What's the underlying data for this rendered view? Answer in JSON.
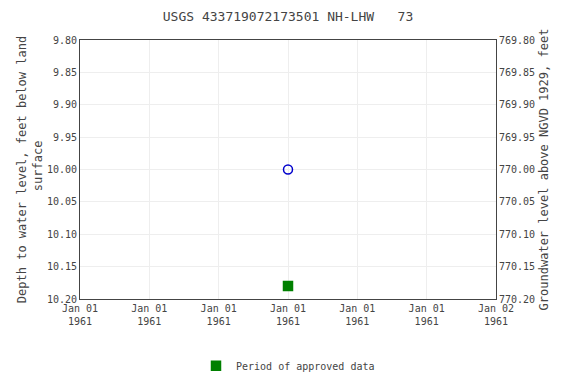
{
  "chart_data": {
    "type": "scatter",
    "title": "USGS 433719072173501 NH-LHW   73",
    "y_label": "Depth to water level, feet below land\n surface",
    "y2_label": "Groundwater level above NGVD 1929, feet",
    "categories": [
      "Jan 01\n1961",
      "Jan 01\n1961",
      "Jan 01\n1961",
      "Jan 01\n1961",
      "Jan 01\n1961",
      "Jan 01\n1961",
      "Jan 02\n1961"
    ],
    "series": [
      {
        "name": "Period of approved data",
        "color": "#008000",
        "marker": "square",
        "values": [
          null,
          null,
          null,
          10.18,
          null,
          null,
          null
        ]
      },
      {
        "color": "#0000cc",
        "marker": "circle-open",
        "values": [
          null,
          null,
          null,
          10.0,
          null,
          null,
          null
        ]
      }
    ],
    "ylim": [
      10.2,
      9.8
    ],
    "yticks": [
      {
        "value": 9.8,
        "label": "9.80"
      },
      9.85,
      {
        "value": 9.9,
        "label": "9.90"
      },
      9.95,
      {
        "value": 10.0,
        "label": "10.00"
      },
      10.05,
      {
        "value": 10.1,
        "label": "10.10"
      },
      10.15,
      {
        "value": 10.2,
        "label": "10.20"
      }
    ],
    "y2lim": [
      770.2,
      769.8
    ],
    "y2ticks": [
      {
        "value": 770.2,
        "label": "770.20"
      },
      770.15,
      {
        "value": 770.1,
        "label": "770.10"
      },
      770.05,
      {
        "value": 770.0,
        "label": "770.00"
      },
      769.95,
      {
        "value": 769.9,
        "label": "769.90"
      },
      769.85,
      {
        "value": 769.8,
        "label": "769.80"
      }
    ],
    "grid": true,
    "legend": "bottom"
  }
}
